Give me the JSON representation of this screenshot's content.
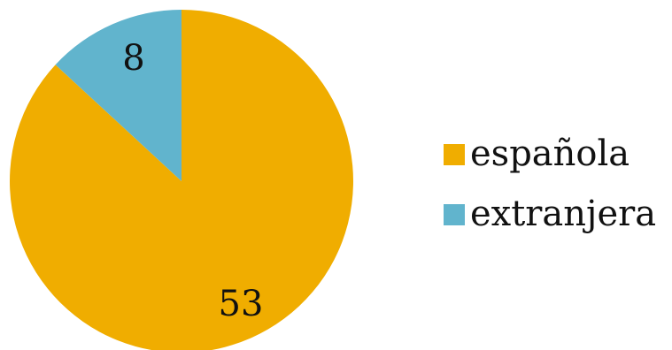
{
  "chart_data": {
    "type": "pie",
    "categories": [
      "española",
      "extranjera"
    ],
    "values": [
      53,
      8
    ],
    "colors": [
      "#F0AD00",
      "#61B4CD"
    ],
    "data_labels": [
      "53",
      "8"
    ],
    "legend_position": "right",
    "start_angle": "12 o'clock",
    "direction": "clockwise"
  }
}
